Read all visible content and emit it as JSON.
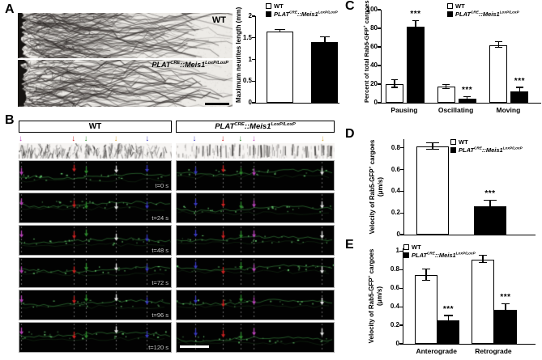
{
  "panels": {
    "a": "A",
    "b": "B",
    "c": "C",
    "d": "D",
    "e": "E"
  },
  "labels": {
    "wt": "WT",
    "mut": {
      "pre": "PLAT",
      "sup1": "CRE",
      "mid": "::Meis1",
      "sup2": "LoxP/LoxP"
    }
  },
  "panel_b": {
    "header_wt": "WT",
    "time_labels": [
      "t=0 s",
      "t=24 s",
      "t=48 s",
      "t=72 s",
      "t=96 s",
      "t=120 s"
    ],
    "wt_arrows": {
      "fracs": [
        0.013,
        0.358,
        0.439,
        0.635,
        0.84
      ],
      "colors": [
        "#bb44bb",
        "#cc2222",
        "#2e8b2e",
        "#d8a93e",
        "#3a3ac0"
      ],
      "frame_colors": [
        "#bb44bb",
        "#cc2222",
        "#2e8b2e",
        "#e8e8e8",
        "#3a3ac0"
      ]
    },
    "mut_arrows": {
      "fracs": [
        0.117,
        0.296,
        0.407,
        0.491,
        0.925
      ],
      "colors": [
        "#3a3ac0",
        "#cc2222",
        "#2e8b2e",
        "#bb44bb",
        "#d8a93e"
      ],
      "frame_colors": [
        "#3a3ac0",
        "#cc2222",
        "#2e8b2e",
        "#bb44bb",
        "#e8e8e8"
      ]
    }
  },
  "chart_data": [
    {
      "id": "A",
      "type": "bar",
      "ylabel": "Maximum neurites length (mm)",
      "ylim": [
        0,
        2
      ],
      "yticks": [
        0,
        0.5,
        1,
        1.5,
        2
      ],
      "categories": [
        ""
      ],
      "series": [
        {
          "name": "WT",
          "values": [
            1.65
          ],
          "errors": [
            0.03
          ]
        },
        {
          "name": "PLAT^CRE::Meis1^LoxP/LoxP",
          "values": [
            1.4
          ],
          "errors": [
            0.12
          ]
        }
      ],
      "sig": [],
      "show_xlabels": false,
      "legend_position": "top"
    },
    {
      "id": "C",
      "type": "bar",
      "ylabel_parts": {
        "pre": "Percent of total Rab5-GFP",
        "sup": "+",
        "post": " cargoes"
      },
      "ylim": [
        0,
        100
      ],
      "yticks": [
        0,
        20,
        40,
        60,
        80,
        100
      ],
      "categories": [
        "Pausing",
        "Oscillating",
        "Moving"
      ],
      "series": [
        {
          "name": "WT",
          "values": [
            20,
            17,
            62
          ],
          "errors": [
            4,
            2,
            3
          ]
        },
        {
          "name": "PLAT^CRE::Meis1^LoxP/LoxP",
          "values": [
            82,
            4,
            12
          ],
          "errors": [
            6,
            2,
            4
          ]
        }
      ],
      "sig": [
        "***",
        "***",
        "***"
      ],
      "show_xlabels": true,
      "legend_position": "top-right"
    },
    {
      "id": "D",
      "type": "bar",
      "ylabel_parts": {
        "pre": "Velocity of Rab5-GFP",
        "sup": "+",
        "post": " cargoes",
        "line2": "(μm/s)"
      },
      "ylim": [
        0,
        0.88
      ],
      "yticks": [
        0,
        0.2,
        0.4,
        0.6,
        0.8
      ],
      "categories": [
        ""
      ],
      "series": [
        {
          "name": "WT",
          "values": [
            0.81
          ],
          "errors": [
            0.03
          ]
        },
        {
          "name": "PLAT^CRE::Meis1^LoxP/LoxP",
          "values": [
            0.26
          ],
          "errors": [
            0.05
          ]
        }
      ],
      "sig": [
        "***"
      ],
      "show_xlabels": false,
      "legend_position": "inside-top-right"
    },
    {
      "id": "E",
      "type": "bar",
      "ylabel_parts": {
        "pre": "Velocity of Rab5-GFP",
        "sup": "+",
        "post": " cargoes",
        "line2": "(μm/s)"
      },
      "ylim": [
        0,
        1.03
      ],
      "yticks": [
        0,
        0.2,
        0.4,
        0.6,
        0.8,
        1
      ],
      "categories": [
        "Anterograde",
        "Retrograde"
      ],
      "series": [
        {
          "name": "WT",
          "values": [
            0.74,
            0.91
          ],
          "errors": [
            0.06,
            0.04
          ]
        },
        {
          "name": "PLAT^CRE::Meis1^LoxP/LoxP",
          "values": [
            0.25,
            0.37
          ],
          "errors": [
            0.05,
            0.06
          ]
        }
      ],
      "sig": [
        "***",
        "***"
      ],
      "show_xlabels": true,
      "legend_position": "inside-top-left"
    }
  ]
}
